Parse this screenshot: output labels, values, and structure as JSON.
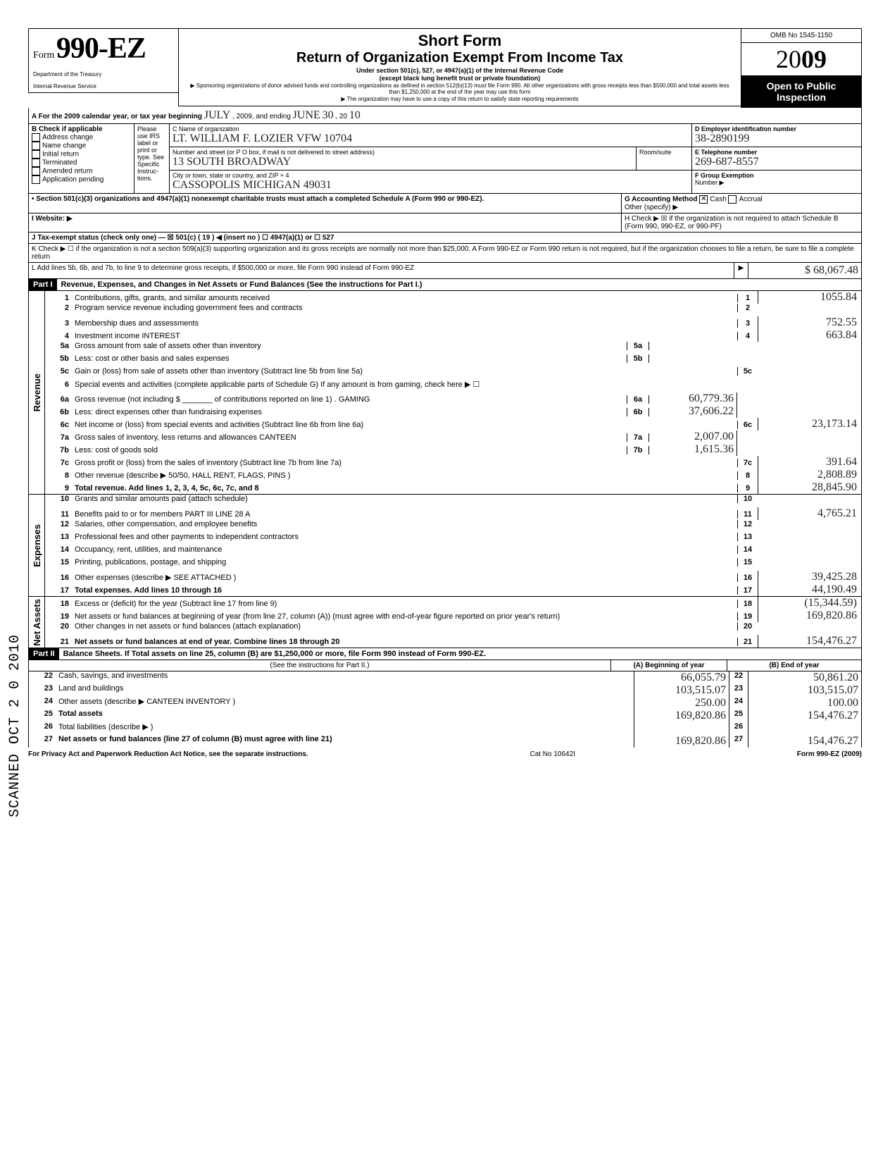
{
  "omb": "OMB No 1545-1150",
  "form_prefix": "Form",
  "form_number": "990-EZ",
  "year_outline": "20",
  "year_bold": "09",
  "dept1": "Department of the Treasury",
  "dept2": "Internal Revenue Service",
  "title1": "Short Form",
  "title2": "Return of Organization Exempt From Income Tax",
  "sub1": "Under section 501(c), 527, or 4947(a)(1) of the Internal Revenue Code",
  "sub2": "(except black lung benefit trust or private foundation)",
  "note1": "▶ Sponsoring organizations of donor advised funds and controlling organizations as defined in section 512(b)(13) must file Form 990. All other organizations with gross receipts less than $500,000 and total assets less than $1,250,000 at the end of the year may use this form",
  "note2": "▶ The organization may have to use a copy of this return to satisfy state reporting requirements",
  "open1": "Open to Public",
  "open2": "Inspection",
  "A_line": "A  For the 2009 calendar year, or tax year beginning",
  "A_begin": "JULY",
  "A_mid": ", 2009, and ending",
  "A_end_month": "JUNE",
  "A_end_day": "30",
  "A_end_y1": ", 20",
  "A_end_y2": "10",
  "B_hdr": "B  Check if applicable",
  "B_opts": [
    "Address change",
    "Name change",
    "Initial return",
    "Terminated",
    "Amended return",
    "Application pending"
  ],
  "please": "Please use IRS label or print or type. See Specific Instruc-tions.",
  "C_label": "C Name of organization",
  "C_val": "LT. WILLIAM F. LOZIER VFW 10704",
  "addr_label": "Number and street (or P O box, if mail is not delivered to street address)",
  "room_label": "Room/suite",
  "addr_val": "13 SOUTH BROADWAY",
  "city_label": "City or town, state or country, and ZIP + 4",
  "city_val": "CASSOPOLIS MICHIGAN 49031",
  "D_label": "D Employer identification number",
  "D_val": "38-2890199",
  "E_label": "E Telephone number",
  "E_val": "269-687-8557",
  "F_label": "F Group Exemption",
  "F_label2": "Number ▶",
  "sec_note": "• Section 501(c)(3) organizations and 4947(a)(1) nonexempt charitable trusts must attach a completed Schedule A (Form 990 or 990-EZ).",
  "G_label": "G  Accounting Method",
  "G_cash": "Cash",
  "G_accrual": "Accrual",
  "G_other": "Other (specify) ▶",
  "H_text": "H  Check ▶ ☒ if the organization is not required to attach Schedule B (Form 990, 990-EZ, or 990-PF)",
  "I_label": "I   Website: ▶",
  "J_label": "J  Tax-exempt status (check only one) — ☒ 501(c) ( 19 ) ◀ (insert no )   ☐ 4947(a)(1) or   ☐ 527",
  "K_label": "K  Check ▶  ☐   if the organization is not a section 509(a)(3) supporting organization and its gross receipts are normally not more than $25,000.  A Form 990-EZ or Form 990 return is not required, but if the organization chooses to file a return, be sure to file a complete return",
  "L_label": "L  Add lines 5b, 6b, and 7b, to line 9 to determine gross receipts, if $500,000 or more, file Form 990 instead of Form 990-EZ",
  "L_arrow": "▶",
  "L_val": "$ 68,067.48",
  "part1": "Part I",
  "part1_desc": "Revenue, Expenses, and Changes in Net Assets or Fund Balances (See the instructions for Part I.)",
  "part2": "Part II",
  "part2_desc": "Balance Sheets. If Total assets on line 25, column (B) are $1,250,000 or more, file Form 990 instead of Form 990-EZ.",
  "side_rev": "Revenue",
  "side_exp": "Expenses",
  "side_na": "Net Assets",
  "lines": {
    "1": {
      "t": "Contributions, gifts, grants, and similar amounts received",
      "v": "1055.84"
    },
    "2": {
      "t": "Program service revenue including government fees and contracts",
      "v": ""
    },
    "3": {
      "t": "Membership dues and assessments",
      "v": "752.55"
    },
    "4": {
      "t": "Investment income    INTEREST",
      "v": "663.84"
    },
    "5a": {
      "t": "Gross amount from sale of assets other than inventory",
      "m": "5a",
      "mv": ""
    },
    "5b": {
      "t": "Less: cost or other basis and sales expenses",
      "m": "5b",
      "mv": ""
    },
    "5c": {
      "t": "Gain or (loss) from sale of assets other than inventory (Subtract line 5b from line 5a)",
      "v": ""
    },
    "6": {
      "t": "Special events and activities (complete applicable parts of Schedule G)  If any amount is from gaming, check here ▶ ☐"
    },
    "6a": {
      "t": "Gross revenue (not including $ _______ of contributions reported on line 1) .  GAMING",
      "m": "6a",
      "mv": "60,779.36"
    },
    "6b": {
      "t": "Less: direct expenses other than fundraising expenses",
      "m": "6b",
      "mv": "37,606.22"
    },
    "6c": {
      "t": "Net income or (loss) from special events and activities (Subtract line 6b from line 6a)",
      "v": "23,173.14"
    },
    "7a": {
      "t": "Gross sales of inventory, less returns and allowances  CANTEEN",
      "m": "7a",
      "mv": "2,007.00"
    },
    "7b": {
      "t": "Less: cost of goods sold",
      "m": "7b",
      "mv": "1,615.36"
    },
    "7c": {
      "t": "Gross profit or (loss) from the sales of inventory (Subtract line 7b from line 7a)",
      "v": "391.64"
    },
    "8": {
      "t": "Other revenue (describe ▶ 50/50, HALL RENT, FLAGS, PINS )",
      "v": "2,808.89"
    },
    "9": {
      "t": "Total revenue. Add lines 1, 2, 3, 4, 5c, 6c, 7c, and 8",
      "v": "28,845.90"
    },
    "10": {
      "t": "Grants and similar amounts paid (attach schedule)",
      "v": ""
    },
    "11": {
      "t": "Benefits paid to or for members   PART III  LINE 28 A",
      "v": "4,765.21"
    },
    "12": {
      "t": "Salaries, other compensation, and employee benefits",
      "v": ""
    },
    "13": {
      "t": "Professional fees and other payments to independent contractors",
      "v": ""
    },
    "14": {
      "t": "Occupancy, rent, utilities, and maintenance",
      "v": ""
    },
    "15": {
      "t": "Printing, publications, postage, and shipping",
      "v": ""
    },
    "16": {
      "t": "Other expenses (describe ▶  SEE ATTACHED )",
      "v": "39,425.28"
    },
    "17": {
      "t": "Total expenses. Add lines 10 through 16",
      "v": "44,190.49"
    },
    "18": {
      "t": "Excess or (deficit) for the year (Subtract line 17 from line 9)",
      "v": "(15,344.59)"
    },
    "19": {
      "t": "Net assets or fund balances at beginning of year (from line 27, column (A)) (must agree with end-of-year figure reported on prior year's return)",
      "v": "169,820.86"
    },
    "20": {
      "t": "Other changes in net assets or fund balances (attach explanation)",
      "v": ""
    },
    "21": {
      "t": "Net assets or fund balances at end of year. Combine lines 18 through 20",
      "v": "154,476.27"
    }
  },
  "bal_hdr": "(See the instructions for Part II.)",
  "bal_colA": "(A) Beginning of year",
  "bal_colB": "(B) End of year",
  "bal": {
    "22": {
      "t": "Cash, savings, and investments",
      "a": "66,055.79",
      "b": "50,861.20"
    },
    "23": {
      "t": "Land and buildings",
      "a": "103,515.07",
      "b": "103,515.07"
    },
    "24": {
      "t": "Other assets (describe ▶  CANTEEN INVENTORY )",
      "a": "250.00",
      "b": "100.00"
    },
    "25": {
      "t": "Total assets",
      "a": "169,820.86",
      "b": "154,476.27"
    },
    "26": {
      "t": "Total liabilities (describe ▶                                                              )",
      "a": "",
      "b": ""
    },
    "27": {
      "t": "Net assets or fund balances (line 27 of column (B) must agree with line 21)",
      "a": "169,820.86",
      "b": "154,476.27"
    }
  },
  "footer_l": "For Privacy Act and Paperwork Reduction Act Notice, see the separate instructions.",
  "footer_c": "Cat No 10642I",
  "footer_r": "Form 990-EZ (2009)",
  "stamp": "SCANNED OCT 2 0 2010"
}
